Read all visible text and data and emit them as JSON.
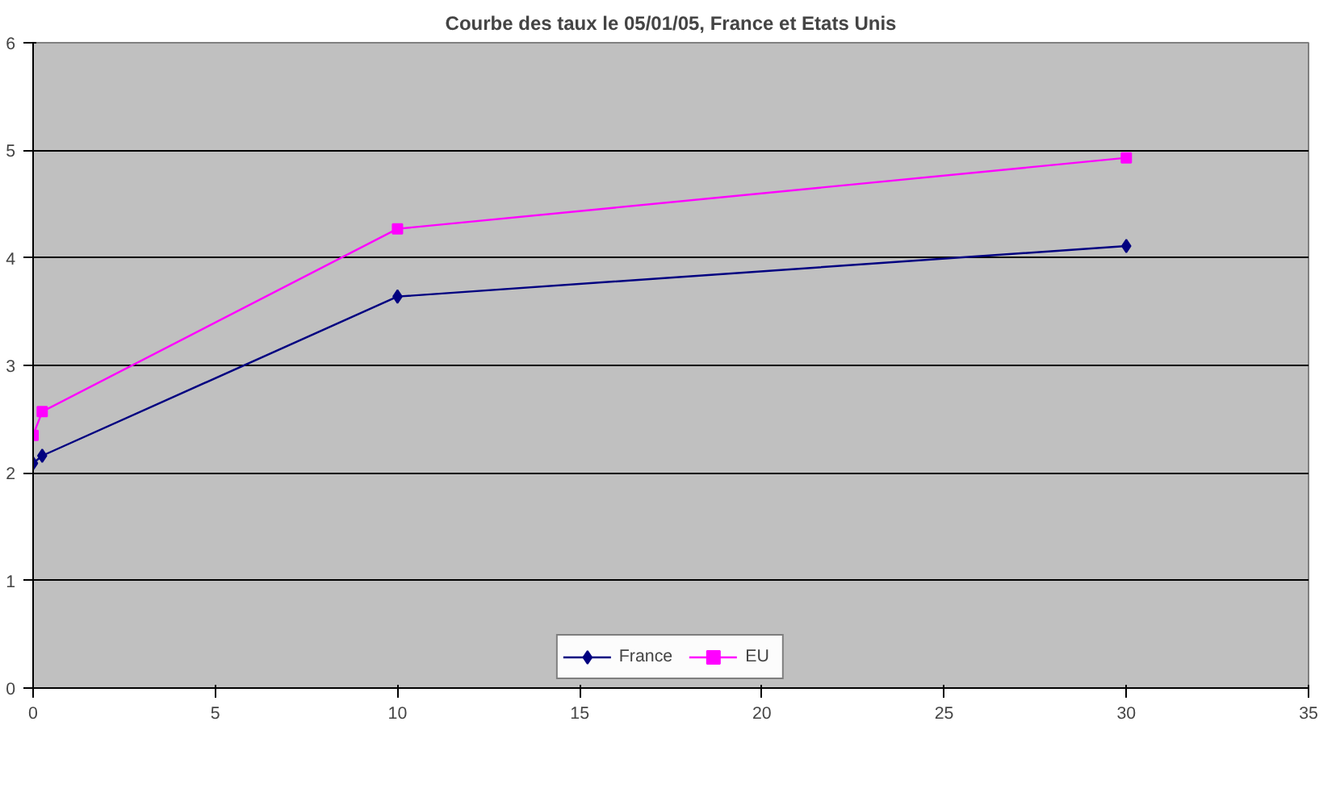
{
  "chart_data": {
    "type": "line",
    "title": "Courbe des taux le 05/01/05, France et Etats Unis",
    "x": [
      0,
      0.25,
      10,
      30
    ],
    "series": [
      {
        "name": "France",
        "color": "#000080",
        "marker": "diamond",
        "values": [
          2.09,
          2.16,
          3.64,
          4.11
        ]
      },
      {
        "name": "EU",
        "color": "#ff00ff",
        "marker": "square",
        "values": [
          2.35,
          2.57,
          4.27,
          4.93
        ]
      }
    ],
    "xlim": [
      0,
      35
    ],
    "xticks": [
      0,
      5,
      10,
      15,
      20,
      25,
      30,
      35
    ],
    "ylim": [
      0,
      6
    ],
    "yticks": [
      0,
      1,
      2,
      3,
      4,
      5,
      6
    ],
    "grid": "y",
    "legend": "bottom",
    "line_style": "solid"
  }
}
